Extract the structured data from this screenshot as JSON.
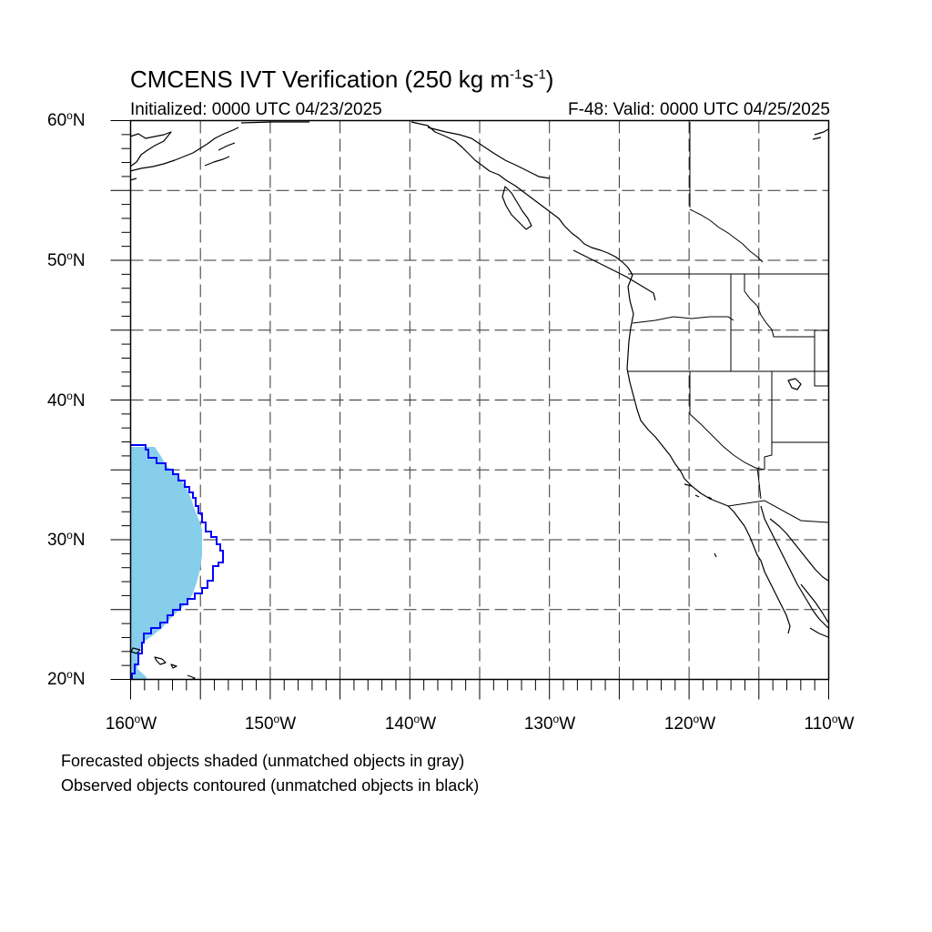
{
  "title": {
    "prefix": "CMCENS IVT Verification (250 kg m",
    "sup1": "-1",
    "mid": "s",
    "sup2": "-1",
    "suffix": ")"
  },
  "initialized": "Initialized: 0000 UTC 04/23/2025",
  "valid": "F-48: Valid: 0000 UTC 04/25/2025",
  "lat_labels": [
    "60",
    "50",
    "40",
    "30",
    "20"
  ],
  "lat_suffix": "N",
  "lon_labels": [
    "160",
    "150",
    "140",
    "130",
    "120",
    "110"
  ],
  "lon_suffix": "W",
  "notes": [
    "Forecasted objects shaded (unmatched objects in gray)",
    "Observed objects contoured (unmatched objects in black)"
  ],
  "map": {
    "lon_range": [
      -160,
      -110
    ],
    "lat_range": [
      20,
      60
    ],
    "grid_interval_deg": 5,
    "grid_style": "dashed",
    "forecast_color": "#87ceeb",
    "observed_color": "#0000ff",
    "coast_color": "#000000"
  }
}
